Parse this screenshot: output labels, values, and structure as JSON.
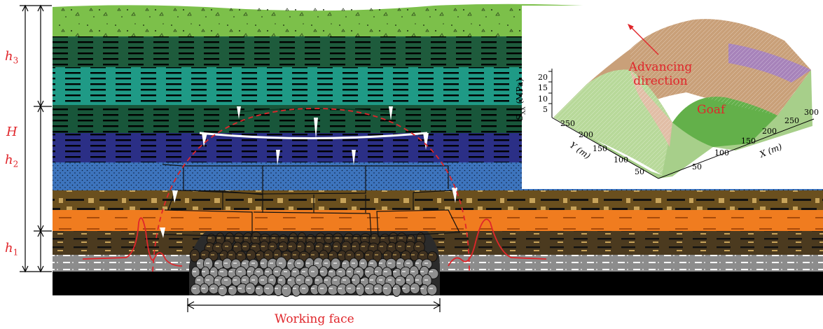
{
  "labels": {
    "H": "H",
    "h1": "h",
    "h1_sub": "1",
    "h2": "h",
    "h2_sub": "2",
    "h3": "h",
    "h3_sub": "3",
    "working_face": "Working face"
  },
  "inset": {
    "advancing": "Advancing\ndirection",
    "goaf": "Goaf",
    "z_axis_label": "S",
    "z_axis_sub": "XX",
    "z_axis_unit": " (MPa)",
    "z_ticks": [
      "20",
      "15",
      "10",
      "5"
    ],
    "y_axis_label": "Y (m)",
    "y_ticks": [
      "250",
      "200",
      "150",
      "100",
      "50"
    ],
    "x_axis_label": "X (m)",
    "x_ticks": [
      "300",
      "250",
      "200",
      "150",
      "100",
      "50"
    ]
  },
  "colors": {
    "topsoil": "#7cc04a",
    "dark_green": "#1e5b3c",
    "teal": "#1f9a86",
    "dark_green2": "#18563a",
    "navy": "#2b2f86",
    "blue": "#3d74bd",
    "brown": "#6a4f1e",
    "orange": "#f07c1f",
    "dark_brown": "#4b3a1f",
    "gray": "#8c8c8c",
    "coal": "#000000",
    "red": "#e0262b"
  }
}
